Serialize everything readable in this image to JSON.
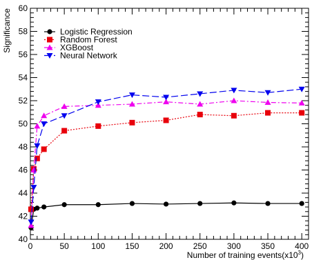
{
  "chart_data": {
    "type": "line",
    "title": "",
    "xlabel": "Number of training events(x10",
    "xlabel_exponent": "3",
    "xlabel_suffix": ")",
    "ylabel": "Significance",
    "xlim": [
      0,
      410
    ],
    "ylim": [
      40,
      60
    ],
    "x_ticks": [
      0,
      50,
      100,
      150,
      200,
      250,
      300,
      350,
      400
    ],
    "y_ticks": [
      40,
      42,
      44,
      46,
      48,
      50,
      52,
      54,
      56,
      58,
      60
    ],
    "grid": false,
    "legend_position": "top-left",
    "series": [
      {
        "name": "Logistic Regression",
        "color": "#000000",
        "marker": "circle",
        "dash": "solid",
        "x": [
          1,
          5,
          10,
          20,
          50,
          100,
          150,
          200,
          250,
          300,
          350,
          400
        ],
        "y": [
          41.0,
          42.6,
          42.7,
          42.8,
          43.0,
          43.0,
          43.1,
          43.05,
          43.1,
          43.15,
          43.1,
          43.1
        ]
      },
      {
        "name": "Random Forest",
        "color": "#e8000b",
        "marker": "square",
        "dash": "dotted",
        "x": [
          1,
          5,
          10,
          20,
          50,
          100,
          150,
          200,
          250,
          300,
          350,
          400
        ],
        "y": [
          42.6,
          46.1,
          47.0,
          47.8,
          49.4,
          49.8,
          50.1,
          50.3,
          50.8,
          50.7,
          50.95,
          50.95
        ]
      },
      {
        "name": "XGBoost",
        "color": "#ee00ee",
        "marker": "triangle-up",
        "dash": "dashdot",
        "x": [
          1,
          5,
          10,
          20,
          50,
          100,
          150,
          200,
          250,
          300,
          350,
          400
        ],
        "y": [
          41.2,
          46.0,
          49.8,
          50.7,
          51.5,
          51.6,
          51.7,
          51.9,
          51.7,
          52.0,
          51.85,
          51.8
        ]
      },
      {
        "name": "Neural Network",
        "color": "#0000ee",
        "marker": "triangle-down",
        "dash": "longdash",
        "x": [
          1,
          5,
          10,
          20,
          50,
          100,
          150,
          200,
          250,
          300,
          350,
          400
        ],
        "y": [
          41.5,
          44.5,
          48.1,
          50.0,
          50.7,
          51.9,
          52.5,
          52.3,
          52.6,
          52.9,
          52.7,
          53.0
        ]
      }
    ]
  }
}
